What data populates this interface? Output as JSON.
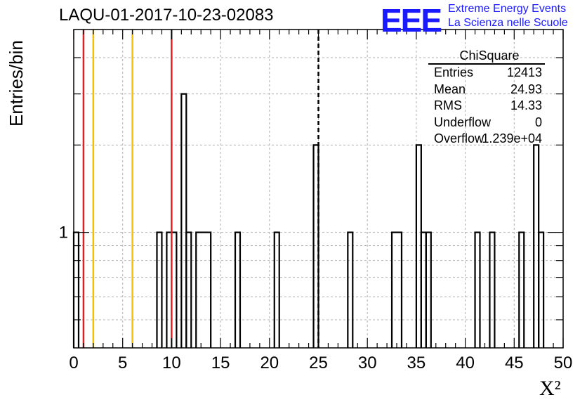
{
  "title": "LAQU-01-2017-10-23-02083",
  "logo": {
    "mark": "EEE",
    "line1": "Extreme Energy Events",
    "line2": "La Scienza nelle Scuole"
  },
  "axes": {
    "xlabel": "X²",
    "ylabel": "Entries/bin"
  },
  "stats": {
    "header": "ChiSquare",
    "rows": [
      {
        "label": "Entries",
        "value": "12413"
      },
      {
        "label": "Mean",
        "value": "24.93"
      },
      {
        "label": "RMS",
        "value": "14.33"
      },
      {
        "label": "Underflow",
        "value": "0"
      },
      {
        "label": "Overflow",
        "value": "1.239e+04"
      }
    ]
  },
  "chart_data": {
    "type": "histogram",
    "xlim": [
      0,
      50
    ],
    "ylim": [
      0.4,
      5
    ],
    "y_scale": "log",
    "bin_width": 0.5,
    "x_ticks": [
      0,
      5,
      10,
      15,
      20,
      25,
      30,
      35,
      40,
      45,
      50
    ],
    "y_tick_labels": [
      {
        "value": 1,
        "label": "1"
      }
    ],
    "grid": true,
    "line_color": "#000000",
    "bins": [
      {
        "x0": 0,
        "x1": 0.5,
        "count": 1
      },
      {
        "x0": 8.5,
        "x1": 9.0,
        "count": 1
      },
      {
        "x0": 9.5,
        "x1": 10.5,
        "count": 1
      },
      {
        "x0": 11.0,
        "x1": 11.5,
        "count": 3
      },
      {
        "x0": 11.5,
        "x1": 12.0,
        "count": 1
      },
      {
        "x0": 12.5,
        "x1": 14.0,
        "count": 1
      },
      {
        "x0": 16.5,
        "x1": 17.0,
        "count": 1
      },
      {
        "x0": 20.5,
        "x1": 21.0,
        "count": 1
      },
      {
        "x0": 24.5,
        "x1": 25.0,
        "count": 2
      },
      {
        "x0": 28.0,
        "x1": 28.5,
        "count": 1
      },
      {
        "x0": 32.5,
        "x1": 33.5,
        "count": 1
      },
      {
        "x0": 35.0,
        "x1": 35.5,
        "count": 2
      },
      {
        "x0": 35.5,
        "x1": 36.0,
        "count": 1
      },
      {
        "x0": 36.0,
        "x1": 36.5,
        "count": 1
      },
      {
        "x0": 41.0,
        "x1": 41.5,
        "count": 1
      },
      {
        "x0": 42.5,
        "x1": 43.0,
        "count": 1
      },
      {
        "x0": 45.5,
        "x1": 46.0,
        "count": 1
      },
      {
        "x0": 47.0,
        "x1": 47.5,
        "count": 2
      },
      {
        "x0": 47.5,
        "x1": 48.0,
        "count": 1
      }
    ],
    "vertical_lines": [
      {
        "x": 1,
        "color": "#dd2222",
        "style": "solid"
      },
      {
        "x": 2,
        "color": "#f5c000",
        "style": "solid"
      },
      {
        "x": 6,
        "color": "#f5c000",
        "style": "solid"
      },
      {
        "x": 10,
        "color": "#dd2222",
        "style": "solid"
      },
      {
        "x": 25,
        "color": "#000000",
        "style": "dashed"
      }
    ]
  }
}
